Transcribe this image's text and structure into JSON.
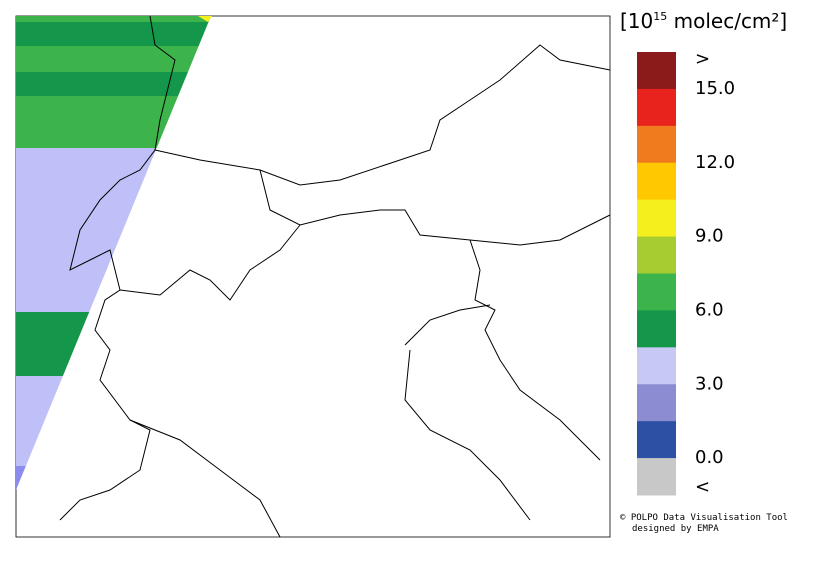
{
  "legend": {
    "title_base": "[10",
    "title_exponent": "15",
    "title_unit": " molec/cm²]",
    "colors": [
      "#8b1a1a",
      "#e8231e",
      "#f07a1e",
      "#ffc800",
      "#f5ef1e",
      "#a6cc32",
      "#3cb44b",
      "#14964b",
      "#c8c8f5",
      "#8c8cd2",
      "#2d50a5",
      "#c8c8c8"
    ],
    "labels": [
      ">",
      "15.0",
      "12.0",
      "9.0",
      "6.0",
      "3.0",
      "0.0",
      "<"
    ]
  },
  "credits": [
    "© POLPO Data Visualisation Tool",
    "designed by EMPA"
  ]
}
